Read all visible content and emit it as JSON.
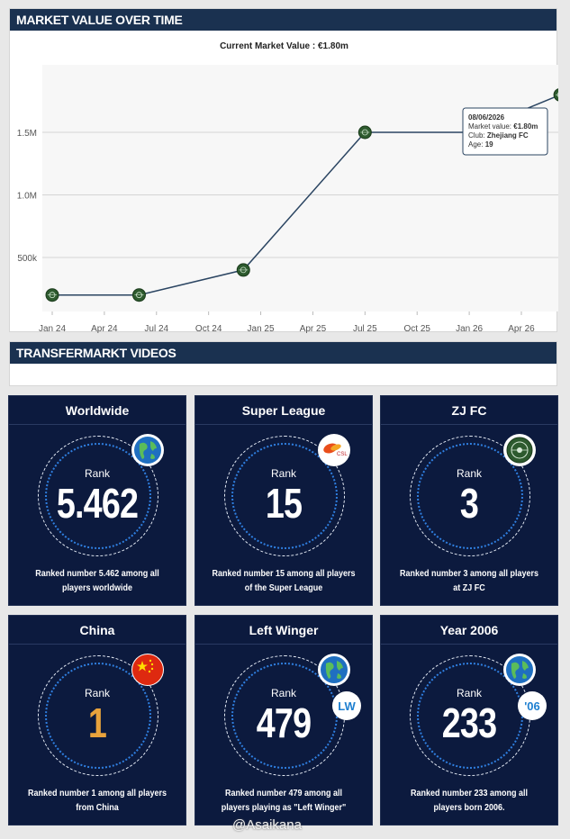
{
  "market_value": {
    "header": "MARKET VALUE OVER TIME",
    "subtitle": "Current Market Value : €1.80m",
    "tooltip": {
      "date": "08/06/2026",
      "market_value_label": "Market value:",
      "market_value": "€1.80m",
      "club_label": "Club:",
      "club": "Zhejiang FC",
      "age_label": "Age:",
      "age": "19"
    }
  },
  "chart_data": {
    "type": "line",
    "x_ticks": [
      "Jan 24",
      "Apr 24",
      "Jul 24",
      "Oct 24",
      "Jan 25",
      "Apr 25",
      "Jul 25",
      "Oct 25",
      "Jan 26",
      "Apr 26"
    ],
    "y_ticks": [
      "500k",
      "1.0M",
      "1.5M"
    ],
    "y_tick_values": [
      500000,
      1000000,
      1500000
    ],
    "points": [
      {
        "x": "2024-01",
        "y": 200000
      },
      {
        "x": "2024-06",
        "y": 200000
      },
      {
        "x": "2024-12",
        "y": 400000
      },
      {
        "x": "2025-07",
        "y": 1500000
      },
      {
        "x": "2026-01",
        "y": 1500000
      },
      {
        "x": "2026-06-08",
        "y": 1800000
      }
    ],
    "ylim": [
      0,
      1900000
    ],
    "grid": true,
    "line_color": "#2b4562",
    "marker_color": "#2d5a2e"
  },
  "videos": {
    "header": "TRANSFERMARKT VIDEOS"
  },
  "rank_label": "Rank",
  "cards": [
    {
      "title": "Worldwide",
      "rank": "5.462",
      "caption": "Ranked number 5.462 among all players worldwide",
      "icon": "globe-icon"
    },
    {
      "title": "Super League",
      "rank": "15",
      "caption": "Ranked number 15 among all players of the Super League",
      "icon": "league-logo-icon"
    },
    {
      "title": "ZJ FC",
      "rank": "3",
      "caption": "Ranked number 3 among all players at ZJ FC",
      "icon": "club-crest-icon"
    },
    {
      "title": "China",
      "rank": "1",
      "caption": "Ranked number 1 among all players from China",
      "icon": "china-flag-icon"
    },
    {
      "title": "Left Winger",
      "rank": "479",
      "caption": "Ranked number 479 among all players playing as \"Left Winger\"",
      "icon": "globe-icon",
      "side_badge": "LW"
    },
    {
      "title": "Year 2006",
      "rank": "233",
      "caption": "Ranked number 233 among all players born 2006.",
      "icon": "globe-icon",
      "side_badge": "'06"
    }
  ],
  "watermark": "@Asaikana",
  "colors": {
    "header_bg": "#1a3150",
    "card_bg": "#0c1a3e",
    "gold": "#e9a33c"
  }
}
